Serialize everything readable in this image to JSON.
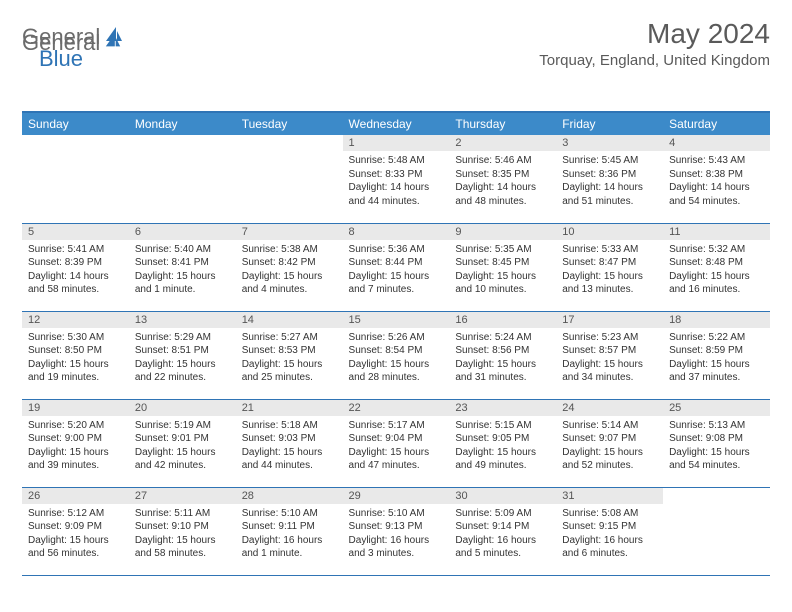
{
  "logo": {
    "general": "General",
    "blue": "Blue"
  },
  "header": {
    "month_title": "May 2024",
    "location": "Torquay, England, United Kingdom"
  },
  "colors": {
    "header_bg": "#3c8ac9",
    "header_border": "#2f74b5",
    "cell_border": "#2f74b5",
    "daynum_bg": "#e9e9e9",
    "logo_blue": "#2f74b5",
    "logo_gray": "#6b6b6b",
    "text": "#333333"
  },
  "calendar": {
    "day_headers": [
      "Sunday",
      "Monday",
      "Tuesday",
      "Wednesday",
      "Thursday",
      "Friday",
      "Saturday"
    ],
    "weeks": [
      [
        {
          "empty": true
        },
        {
          "empty": true
        },
        {
          "empty": true
        },
        {
          "day": "1",
          "sunrise": "Sunrise: 5:48 AM",
          "sunset": "Sunset: 8:33 PM",
          "daylight1": "Daylight: 14 hours",
          "daylight2": "and 44 minutes."
        },
        {
          "day": "2",
          "sunrise": "Sunrise: 5:46 AM",
          "sunset": "Sunset: 8:35 PM",
          "daylight1": "Daylight: 14 hours",
          "daylight2": "and 48 minutes."
        },
        {
          "day": "3",
          "sunrise": "Sunrise: 5:45 AM",
          "sunset": "Sunset: 8:36 PM",
          "daylight1": "Daylight: 14 hours",
          "daylight2": "and 51 minutes."
        },
        {
          "day": "4",
          "sunrise": "Sunrise: 5:43 AM",
          "sunset": "Sunset: 8:38 PM",
          "daylight1": "Daylight: 14 hours",
          "daylight2": "and 54 minutes."
        }
      ],
      [
        {
          "day": "5",
          "sunrise": "Sunrise: 5:41 AM",
          "sunset": "Sunset: 8:39 PM",
          "daylight1": "Daylight: 14 hours",
          "daylight2": "and 58 minutes."
        },
        {
          "day": "6",
          "sunrise": "Sunrise: 5:40 AM",
          "sunset": "Sunset: 8:41 PM",
          "daylight1": "Daylight: 15 hours",
          "daylight2": "and 1 minute."
        },
        {
          "day": "7",
          "sunrise": "Sunrise: 5:38 AM",
          "sunset": "Sunset: 8:42 PM",
          "daylight1": "Daylight: 15 hours",
          "daylight2": "and 4 minutes."
        },
        {
          "day": "8",
          "sunrise": "Sunrise: 5:36 AM",
          "sunset": "Sunset: 8:44 PM",
          "daylight1": "Daylight: 15 hours",
          "daylight2": "and 7 minutes."
        },
        {
          "day": "9",
          "sunrise": "Sunrise: 5:35 AM",
          "sunset": "Sunset: 8:45 PM",
          "daylight1": "Daylight: 15 hours",
          "daylight2": "and 10 minutes."
        },
        {
          "day": "10",
          "sunrise": "Sunrise: 5:33 AM",
          "sunset": "Sunset: 8:47 PM",
          "daylight1": "Daylight: 15 hours",
          "daylight2": "and 13 minutes."
        },
        {
          "day": "11",
          "sunrise": "Sunrise: 5:32 AM",
          "sunset": "Sunset: 8:48 PM",
          "daylight1": "Daylight: 15 hours",
          "daylight2": "and 16 minutes."
        }
      ],
      [
        {
          "day": "12",
          "sunrise": "Sunrise: 5:30 AM",
          "sunset": "Sunset: 8:50 PM",
          "daylight1": "Daylight: 15 hours",
          "daylight2": "and 19 minutes."
        },
        {
          "day": "13",
          "sunrise": "Sunrise: 5:29 AM",
          "sunset": "Sunset: 8:51 PM",
          "daylight1": "Daylight: 15 hours",
          "daylight2": "and 22 minutes."
        },
        {
          "day": "14",
          "sunrise": "Sunrise: 5:27 AM",
          "sunset": "Sunset: 8:53 PM",
          "daylight1": "Daylight: 15 hours",
          "daylight2": "and 25 minutes."
        },
        {
          "day": "15",
          "sunrise": "Sunrise: 5:26 AM",
          "sunset": "Sunset: 8:54 PM",
          "daylight1": "Daylight: 15 hours",
          "daylight2": "and 28 minutes."
        },
        {
          "day": "16",
          "sunrise": "Sunrise: 5:24 AM",
          "sunset": "Sunset: 8:56 PM",
          "daylight1": "Daylight: 15 hours",
          "daylight2": "and 31 minutes."
        },
        {
          "day": "17",
          "sunrise": "Sunrise: 5:23 AM",
          "sunset": "Sunset: 8:57 PM",
          "daylight1": "Daylight: 15 hours",
          "daylight2": "and 34 minutes."
        },
        {
          "day": "18",
          "sunrise": "Sunrise: 5:22 AM",
          "sunset": "Sunset: 8:59 PM",
          "daylight1": "Daylight: 15 hours",
          "daylight2": "and 37 minutes."
        }
      ],
      [
        {
          "day": "19",
          "sunrise": "Sunrise: 5:20 AM",
          "sunset": "Sunset: 9:00 PM",
          "daylight1": "Daylight: 15 hours",
          "daylight2": "and 39 minutes."
        },
        {
          "day": "20",
          "sunrise": "Sunrise: 5:19 AM",
          "sunset": "Sunset: 9:01 PM",
          "daylight1": "Daylight: 15 hours",
          "daylight2": "and 42 minutes."
        },
        {
          "day": "21",
          "sunrise": "Sunrise: 5:18 AM",
          "sunset": "Sunset: 9:03 PM",
          "daylight1": "Daylight: 15 hours",
          "daylight2": "and 44 minutes."
        },
        {
          "day": "22",
          "sunrise": "Sunrise: 5:17 AM",
          "sunset": "Sunset: 9:04 PM",
          "daylight1": "Daylight: 15 hours",
          "daylight2": "and 47 minutes."
        },
        {
          "day": "23",
          "sunrise": "Sunrise: 5:15 AM",
          "sunset": "Sunset: 9:05 PM",
          "daylight1": "Daylight: 15 hours",
          "daylight2": "and 49 minutes."
        },
        {
          "day": "24",
          "sunrise": "Sunrise: 5:14 AM",
          "sunset": "Sunset: 9:07 PM",
          "daylight1": "Daylight: 15 hours",
          "daylight2": "and 52 minutes."
        },
        {
          "day": "25",
          "sunrise": "Sunrise: 5:13 AM",
          "sunset": "Sunset: 9:08 PM",
          "daylight1": "Daylight: 15 hours",
          "daylight2": "and 54 minutes."
        }
      ],
      [
        {
          "day": "26",
          "sunrise": "Sunrise: 5:12 AM",
          "sunset": "Sunset: 9:09 PM",
          "daylight1": "Daylight: 15 hours",
          "daylight2": "and 56 minutes."
        },
        {
          "day": "27",
          "sunrise": "Sunrise: 5:11 AM",
          "sunset": "Sunset: 9:10 PM",
          "daylight1": "Daylight: 15 hours",
          "daylight2": "and 58 minutes."
        },
        {
          "day": "28",
          "sunrise": "Sunrise: 5:10 AM",
          "sunset": "Sunset: 9:11 PM",
          "daylight1": "Daylight: 16 hours",
          "daylight2": "and 1 minute."
        },
        {
          "day": "29",
          "sunrise": "Sunrise: 5:10 AM",
          "sunset": "Sunset: 9:13 PM",
          "daylight1": "Daylight: 16 hours",
          "daylight2": "and 3 minutes."
        },
        {
          "day": "30",
          "sunrise": "Sunrise: 5:09 AM",
          "sunset": "Sunset: 9:14 PM",
          "daylight1": "Daylight: 16 hours",
          "daylight2": "and 5 minutes."
        },
        {
          "day": "31",
          "sunrise": "Sunrise: 5:08 AM",
          "sunset": "Sunset: 9:15 PM",
          "daylight1": "Daylight: 16 hours",
          "daylight2": "and 6 minutes."
        },
        {
          "empty": true
        }
      ]
    ]
  }
}
